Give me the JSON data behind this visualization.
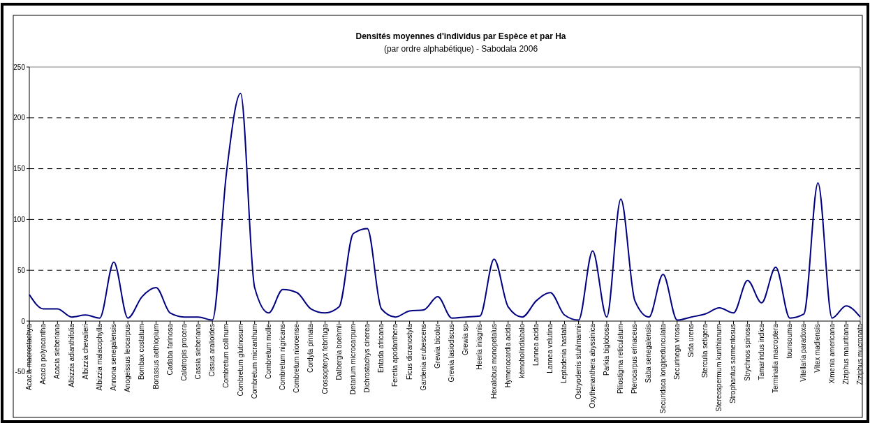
{
  "chart_data": {
    "type": "line",
    "title": "Densités moyennes d'individus par Espèce et par Ha",
    "subtitle": "(par ordre alphabétique) - Sabodala 2006",
    "categories": [
      "Acacia macrostachya",
      "Acacia polyacantha",
      "Acacia sieberiana",
      "Albizzia adianthifolia",
      "Albizzia chevalieri",
      "Albizzia malacophylla",
      "Annona senegalensis",
      "Anogeissus leocarpus",
      "Bombax costatum",
      "Borassus aethiopium",
      "Cadaba farinosa",
      "Calotropis procera",
      "Cassia sieberiana",
      "Cissus aralioides",
      "Combretum collinum",
      "Combretum glutinosum",
      "Combretum micranthum",
      "Combretum molle",
      "Combretum nigricans",
      "Combretum nioroense",
      "Cordyla pinnata",
      "Crossopteryx febrifuga",
      "Dalbergia boehmii",
      "Detarium microcarpum",
      "Dichrostachys cinerea",
      "Entada africana",
      "Feretia apodanthera",
      "Ficus dicranostyla",
      "Gardenia erubescens",
      "Grewia bicolor",
      "Grewia lasiodiscus",
      "Grewia sp",
      "Heeria inisgnis",
      "Hexalobus monopetalus",
      "Hymenocardia acida",
      "kèmoholindiabalo",
      "Lannea acida",
      "Lannea velutina",
      "Leptadenia hastata",
      "Ostryoderris stuhlmannii",
      "Oxythenanthera abyssinica",
      "Parkia biglobosa",
      "Piliostigma reticulatum",
      "Pterocarpus erinaceus",
      "Saba senegalensis",
      "Securidaca longipedunculata",
      "Securinega virosa",
      "Sida urens",
      "Sterculia setigera",
      "Stereospermum kunthianum",
      "Strophantus sarmentosus",
      "Strychnos spinosa",
      "Tamarindus indica",
      "Terminalia macroptera",
      "tounsouma",
      "Vitellaria paradoxa",
      "Vitex madiensis",
      "Ximenia americana",
      "Ziziphus mauritiana",
      "Ziziphus mucronata"
    ],
    "series": [
      {
        "color": "#000080",
        "values": [
          26,
          12,
          12,
          4,
          6,
          3,
          58,
          3,
          24,
          33,
          8,
          4,
          4,
          1,
          146,
          224,
          33,
          8,
          31,
          28,
          12,
          8,
          14,
          86,
          91,
          12,
          4,
          10,
          11,
          24,
          3,
          4,
          5,
          61,
          14,
          4,
          20,
          28,
          6,
          1,
          69,
          4,
          120,
          20,
          4,
          46,
          1,
          4,
          7,
          13,
          8,
          40,
          18,
          53,
          3,
          7,
          136,
          3,
          15,
          4
        ]
      }
    ],
    "ylim": [
      -50,
      250
    ],
    "yticks": [
      -50,
      0,
      50,
      100,
      150,
      200,
      250
    ],
    "grid": "y",
    "marker": "none",
    "line_style": "solid"
  }
}
